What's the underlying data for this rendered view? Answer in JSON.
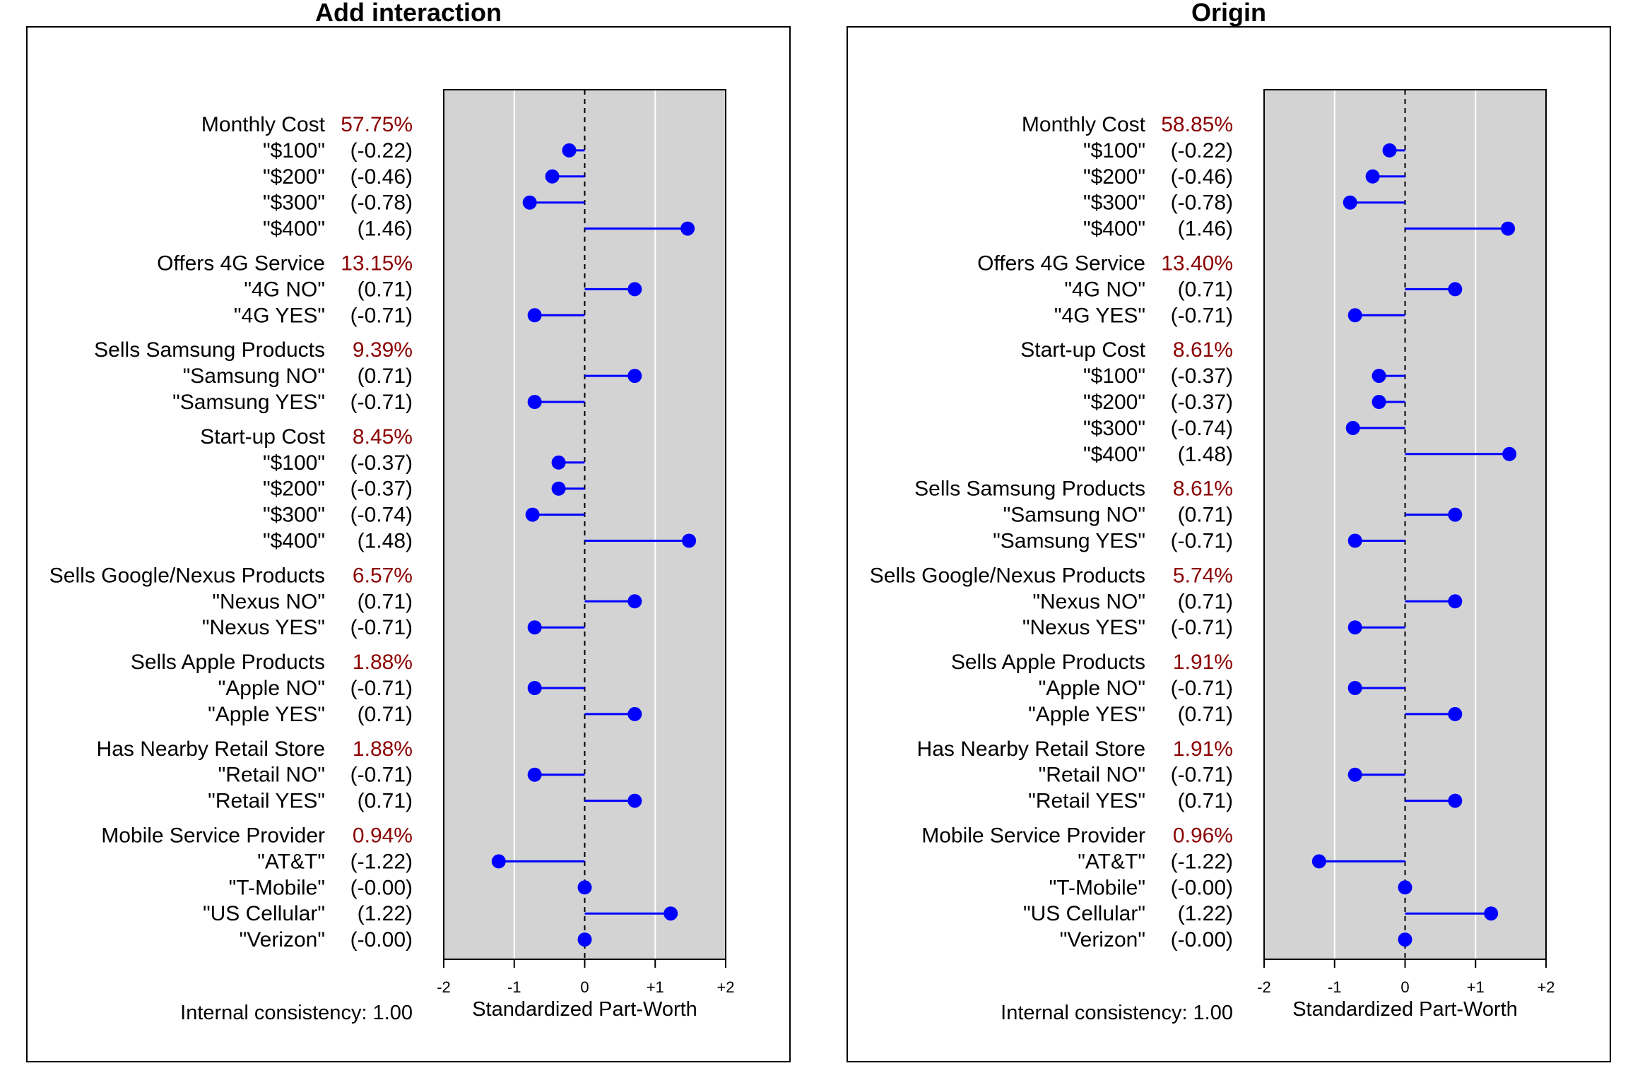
{
  "chart_data": [
    {
      "type": "lollipop",
      "title": "Add interaction",
      "xlabel": "Standardized Part-Worth",
      "xlim": [
        -2,
        2
      ],
      "xticks": [
        "-2",
        "-1",
        "0",
        "+1",
        "+2"
      ],
      "gridlines_at": [
        -1,
        1
      ],
      "reference_line_at": 0,
      "footer": "Internal consistency: 1.00",
      "colors": {
        "points": "#0000FF",
        "importance": "#8B0000",
        "panel_background": "#D3D3D3"
      },
      "attributes": [
        {
          "name": "Monthly Cost",
          "importance": "57.75%",
          "levels": [
            {
              "label": "\"$100\"",
              "value_text": "(-0.22)",
              "value": -0.22
            },
            {
              "label": "\"$200\"",
              "value_text": "(-0.46)",
              "value": -0.46
            },
            {
              "label": "\"$300\"",
              "value_text": "(-0.78)",
              "value": -0.78
            },
            {
              "label": "\"$400\"",
              "value_text": "(1.46)",
              "value": 1.46
            }
          ]
        },
        {
          "name": "Offers 4G Service",
          "importance": "13.15%",
          "levels": [
            {
              "label": "\"4G NO\"",
              "value_text": "(0.71)",
              "value": 0.71
            },
            {
              "label": "\"4G YES\"",
              "value_text": "(-0.71)",
              "value": -0.71
            }
          ]
        },
        {
          "name": "Sells Samsung Products",
          "importance": "9.39%",
          "levels": [
            {
              "label": "\"Samsung NO\"",
              "value_text": "(0.71)",
              "value": 0.71
            },
            {
              "label": "\"Samsung YES\"",
              "value_text": "(-0.71)",
              "value": -0.71
            }
          ]
        },
        {
          "name": "Start-up Cost",
          "importance": "8.45%",
          "levels": [
            {
              "label": "\"$100\"",
              "value_text": "(-0.37)",
              "value": -0.37
            },
            {
              "label": "\"$200\"",
              "value_text": "(-0.37)",
              "value": -0.37
            },
            {
              "label": "\"$300\"",
              "value_text": "(-0.74)",
              "value": -0.74
            },
            {
              "label": "\"$400\"",
              "value_text": "(1.48)",
              "value": 1.48
            }
          ]
        },
        {
          "name": "Sells Google/Nexus Products",
          "importance": "6.57%",
          "levels": [
            {
              "label": "\"Nexus NO\"",
              "value_text": "(0.71)",
              "value": 0.71
            },
            {
              "label": "\"Nexus YES\"",
              "value_text": "(-0.71)",
              "value": -0.71
            }
          ]
        },
        {
          "name": "Sells Apple Products",
          "importance": "1.88%",
          "levels": [
            {
              "label": "\"Apple NO\"",
              "value_text": "(-0.71)",
              "value": -0.71
            },
            {
              "label": "\"Apple YES\"",
              "value_text": "(0.71)",
              "value": 0.71
            }
          ]
        },
        {
          "name": "Has Nearby Retail Store",
          "importance": "1.88%",
          "levels": [
            {
              "label": "\"Retail NO\"",
              "value_text": "(-0.71)",
              "value": -0.71
            },
            {
              "label": "\"Retail YES\"",
              "value_text": "(0.71)",
              "value": 0.71
            }
          ]
        },
        {
          "name": "Mobile Service Provider",
          "importance": "0.94%",
          "levels": [
            {
              "label": "\"AT&T\"",
              "value_text": "(-1.22)",
              "value": -1.22
            },
            {
              "label": "\"T-Mobile\"",
              "value_text": "(-0.00)",
              "value": -0.0
            },
            {
              "label": "\"US Cellular\"",
              "value_text": "(1.22)",
              "value": 1.22
            },
            {
              "label": "\"Verizon\"",
              "value_text": "(-0.00)",
              "value": -0.0
            }
          ]
        }
      ]
    },
    {
      "type": "lollipop",
      "title": "Origin",
      "xlabel": "Standardized Part-Worth",
      "xlim": [
        -2,
        2
      ],
      "xticks": [
        "-2",
        "-1",
        "0",
        "+1",
        "+2"
      ],
      "gridlines_at": [
        -1,
        1
      ],
      "reference_line_at": 0,
      "footer": "Internal consistency: 1.00",
      "colors": {
        "points": "#0000FF",
        "importance": "#8B0000",
        "panel_background": "#D3D3D3"
      },
      "attributes": [
        {
          "name": "Monthly Cost",
          "importance": "58.85%",
          "levels": [
            {
              "label": "\"$100\"",
              "value_text": "(-0.22)",
              "value": -0.22
            },
            {
              "label": "\"$200\"",
              "value_text": "(-0.46)",
              "value": -0.46
            },
            {
              "label": "\"$300\"",
              "value_text": "(-0.78)",
              "value": -0.78
            },
            {
              "label": "\"$400\"",
              "value_text": "(1.46)",
              "value": 1.46
            }
          ]
        },
        {
          "name": "Offers 4G Service",
          "importance": "13.40%",
          "levels": [
            {
              "label": "\"4G NO\"",
              "value_text": "(0.71)",
              "value": 0.71
            },
            {
              "label": "\"4G YES\"",
              "value_text": "(-0.71)",
              "value": -0.71
            }
          ]
        },
        {
          "name": "Start-up Cost",
          "importance": "8.61%",
          "levels": [
            {
              "label": "\"$100\"",
              "value_text": "(-0.37)",
              "value": -0.37
            },
            {
              "label": "\"$200\"",
              "value_text": "(-0.37)",
              "value": -0.37
            },
            {
              "label": "\"$300\"",
              "value_text": "(-0.74)",
              "value": -0.74
            },
            {
              "label": "\"$400\"",
              "value_text": "(1.48)",
              "value": 1.48
            }
          ]
        },
        {
          "name": "Sells Samsung Products",
          "importance": "8.61%",
          "levels": [
            {
              "label": "\"Samsung NO\"",
              "value_text": "(0.71)",
              "value": 0.71
            },
            {
              "label": "\"Samsung YES\"",
              "value_text": "(-0.71)",
              "value": -0.71
            }
          ]
        },
        {
          "name": "Sells Google/Nexus Products",
          "importance": "5.74%",
          "levels": [
            {
              "label": "\"Nexus NO\"",
              "value_text": "(0.71)",
              "value": 0.71
            },
            {
              "label": "\"Nexus YES\"",
              "value_text": "(-0.71)",
              "value": -0.71
            }
          ]
        },
        {
          "name": "Sells Apple Products",
          "importance": "1.91%",
          "levels": [
            {
              "label": "\"Apple NO\"",
              "value_text": "(-0.71)",
              "value": -0.71
            },
            {
              "label": "\"Apple YES\"",
              "value_text": "(0.71)",
              "value": 0.71
            }
          ]
        },
        {
          "name": "Has Nearby Retail Store",
          "importance": "1.91%",
          "levels": [
            {
              "label": "\"Retail NO\"",
              "value_text": "(-0.71)",
              "value": -0.71
            },
            {
              "label": "\"Retail YES\"",
              "value_text": "(0.71)",
              "value": 0.71
            }
          ]
        },
        {
          "name": "Mobile Service Provider",
          "importance": "0.96%",
          "levels": [
            {
              "label": "\"AT&T\"",
              "value_text": "(-1.22)",
              "value": -1.22
            },
            {
              "label": "\"T-Mobile\"",
              "value_text": "(-0.00)",
              "value": -0.0
            },
            {
              "label": "\"US Cellular\"",
              "value_text": "(1.22)",
              "value": 1.22
            },
            {
              "label": "\"Verizon\"",
              "value_text": "(-0.00)",
              "value": -0.0
            }
          ]
        }
      ]
    }
  ]
}
